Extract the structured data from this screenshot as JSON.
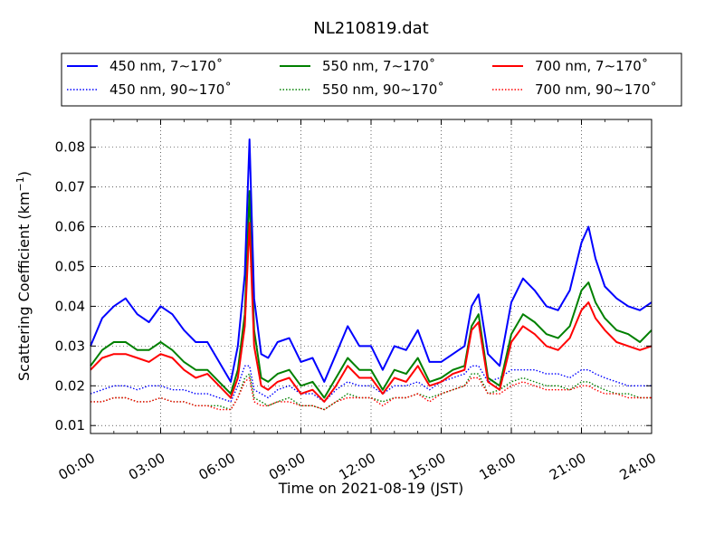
{
  "chart_data": {
    "type": "line",
    "title": "NL210819.dat",
    "xlabel": "Time on 2021-08-19 (JST)",
    "ylabel_main": "Scattering Coefficient (km",
    "ylabel_exp": "−1",
    "ylabel_close": ")",
    "xlim_hours": [
      0,
      24
    ],
    "ylim": [
      0.008,
      0.087
    ],
    "x_ticks": [
      {
        "hour": 0,
        "label": "00:00"
      },
      {
        "hour": 3,
        "label": "03:00"
      },
      {
        "hour": 6,
        "label": "06:00"
      },
      {
        "hour": 9,
        "label": "09:00"
      },
      {
        "hour": 12,
        "label": "12:00"
      },
      {
        "hour": 15,
        "label": "15:00"
      },
      {
        "hour": 18,
        "label": "18:00"
      },
      {
        "hour": 21,
        "label": "21:00"
      },
      {
        "hour": 24,
        "label": "24:00"
      }
    ],
    "y_ticks": [
      {
        "value": 0.01,
        "label": "0.01"
      },
      {
        "value": 0.02,
        "label": "0.02"
      },
      {
        "value": 0.03,
        "label": "0.03"
      },
      {
        "value": 0.04,
        "label": "0.04"
      },
      {
        "value": 0.05,
        "label": "0.05"
      },
      {
        "value": 0.06,
        "label": "0.06"
      },
      {
        "value": 0.07,
        "label": "0.07"
      },
      {
        "value": 0.08,
        "label": "0.08"
      }
    ],
    "grid": true,
    "legend_placement": "above plot",
    "x_hours": [
      0,
      0.5,
      1,
      1.5,
      2,
      2.5,
      3,
      3.5,
      4,
      4.5,
      5,
      5.5,
      6,
      6.3,
      6.6,
      6.8,
      7,
      7.3,
      7.6,
      8,
      8.5,
      9,
      9.5,
      10,
      10.5,
      11,
      11.5,
      12,
      12.5,
      13,
      13.5,
      14,
      14.5,
      15,
      15.5,
      16,
      16.3,
      16.6,
      17,
      17.5,
      18,
      18.5,
      19,
      19.5,
      20,
      20.5,
      21,
      21.3,
      21.6,
      22,
      22.5,
      23,
      23.5,
      24
    ],
    "series": [
      {
        "name": "450 nm, 7∼170˚",
        "color": "#0000ff",
        "style": "solid",
        "values": [
          0.03,
          0.037,
          0.04,
          0.042,
          0.038,
          0.036,
          0.04,
          0.038,
          0.034,
          0.031,
          0.031,
          0.026,
          0.021,
          0.03,
          0.048,
          0.082,
          0.042,
          0.028,
          0.027,
          0.031,
          0.032,
          0.026,
          0.027,
          0.021,
          0.028,
          0.035,
          0.03,
          0.03,
          0.024,
          0.03,
          0.029,
          0.034,
          0.026,
          0.026,
          0.028,
          0.03,
          0.04,
          0.043,
          0.028,
          0.025,
          0.041,
          0.047,
          0.044,
          0.04,
          0.039,
          0.044,
          0.056,
          0.06,
          0.052,
          0.045,
          0.042,
          0.04,
          0.039,
          0.041
        ]
      },
      {
        "name": "450 nm, 90∼170˚",
        "color": "#0000ff",
        "style": "dotted",
        "values": [
          0.018,
          0.019,
          0.02,
          0.02,
          0.019,
          0.02,
          0.02,
          0.019,
          0.019,
          0.018,
          0.018,
          0.017,
          0.016,
          0.02,
          0.025,
          0.025,
          0.019,
          0.018,
          0.017,
          0.019,
          0.02,
          0.018,
          0.018,
          0.016,
          0.019,
          0.021,
          0.02,
          0.02,
          0.018,
          0.02,
          0.02,
          0.021,
          0.019,
          0.021,
          0.022,
          0.023,
          0.025,
          0.025,
          0.021,
          0.022,
          0.024,
          0.024,
          0.024,
          0.023,
          0.023,
          0.022,
          0.024,
          0.024,
          0.023,
          0.022,
          0.021,
          0.02,
          0.02,
          0.02
        ]
      },
      {
        "name": "550 nm, 7∼170˚",
        "color": "#008000",
        "style": "solid",
        "values": [
          0.025,
          0.029,
          0.031,
          0.031,
          0.029,
          0.029,
          0.031,
          0.029,
          0.026,
          0.024,
          0.024,
          0.021,
          0.018,
          0.024,
          0.038,
          0.069,
          0.034,
          0.022,
          0.021,
          0.023,
          0.024,
          0.02,
          0.021,
          0.017,
          0.022,
          0.027,
          0.024,
          0.024,
          0.019,
          0.024,
          0.023,
          0.027,
          0.021,
          0.022,
          0.024,
          0.025,
          0.035,
          0.038,
          0.022,
          0.02,
          0.033,
          0.038,
          0.036,
          0.033,
          0.032,
          0.035,
          0.044,
          0.046,
          0.041,
          0.037,
          0.034,
          0.033,
          0.031,
          0.034
        ]
      },
      {
        "name": "550 nm, 90∼170˚",
        "color": "#008000",
        "style": "dotted",
        "values": [
          0.016,
          0.016,
          0.017,
          0.017,
          0.016,
          0.016,
          0.017,
          0.016,
          0.016,
          0.015,
          0.015,
          0.015,
          0.014,
          0.017,
          0.022,
          0.023,
          0.017,
          0.016,
          0.015,
          0.016,
          0.017,
          0.015,
          0.015,
          0.014,
          0.016,
          0.018,
          0.017,
          0.017,
          0.016,
          0.017,
          0.017,
          0.018,
          0.017,
          0.018,
          0.019,
          0.02,
          0.023,
          0.023,
          0.018,
          0.019,
          0.021,
          0.022,
          0.021,
          0.02,
          0.02,
          0.019,
          0.021,
          0.021,
          0.02,
          0.019,
          0.018,
          0.018,
          0.017,
          0.017
        ]
      },
      {
        "name": "700 nm, 7∼170˚",
        "color": "#ff0000",
        "style": "solid",
        "values": [
          0.024,
          0.027,
          0.028,
          0.028,
          0.027,
          0.026,
          0.028,
          0.027,
          0.024,
          0.022,
          0.023,
          0.02,
          0.017,
          0.022,
          0.035,
          0.061,
          0.03,
          0.02,
          0.019,
          0.021,
          0.022,
          0.018,
          0.019,
          0.016,
          0.02,
          0.025,
          0.022,
          0.022,
          0.018,
          0.022,
          0.021,
          0.025,
          0.02,
          0.021,
          0.023,
          0.024,
          0.034,
          0.036,
          0.021,
          0.019,
          0.031,
          0.035,
          0.033,
          0.03,
          0.029,
          0.032,
          0.039,
          0.041,
          0.037,
          0.034,
          0.031,
          0.03,
          0.029,
          0.03
        ]
      },
      {
        "name": "700 nm, 90∼170˚",
        "color": "#ff0000",
        "style": "dotted",
        "values": [
          0.016,
          0.016,
          0.017,
          0.017,
          0.016,
          0.016,
          0.017,
          0.016,
          0.016,
          0.015,
          0.015,
          0.014,
          0.014,
          0.017,
          0.021,
          0.022,
          0.016,
          0.015,
          0.015,
          0.016,
          0.016,
          0.015,
          0.015,
          0.014,
          0.016,
          0.017,
          0.017,
          0.017,
          0.015,
          0.017,
          0.017,
          0.018,
          0.016,
          0.018,
          0.019,
          0.02,
          0.022,
          0.022,
          0.018,
          0.018,
          0.02,
          0.021,
          0.02,
          0.019,
          0.019,
          0.019,
          0.02,
          0.02,
          0.019,
          0.018,
          0.018,
          0.017,
          0.017,
          0.017
        ]
      }
    ]
  }
}
